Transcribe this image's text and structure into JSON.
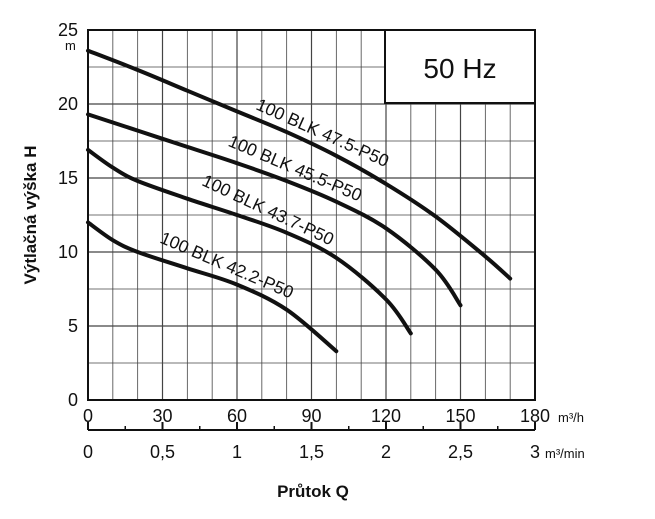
{
  "chart_data": {
    "type": "line",
    "ylabel": "Výtlačná výška H",
    "y_unit": "m",
    "xlabel": "Průtok Q",
    "x_unit": "m³/h",
    "x2_unit": "m³/min",
    "ylim": [
      0,
      25
    ],
    "xlim": [
      0,
      180
    ],
    "x2lim": [
      0,
      3
    ],
    "y_ticks": [
      "0",
      "5",
      "10",
      "15",
      "20",
      "25"
    ],
    "x_ticks": [
      "0",
      "30",
      "60",
      "90",
      "120",
      "150",
      "180"
    ],
    "x2_ticks": [
      "0",
      "0,5",
      "1",
      "1,5",
      "2",
      "2,5",
      "3"
    ],
    "grid": true,
    "frequency_label": "50 Hz",
    "series": [
      {
        "name": "100 BLK 47.5-P50",
        "x": [
          0,
          20,
          40,
          60,
          80,
          100,
          120,
          140,
          160,
          170
        ],
        "y": [
          23.6,
          22.3,
          20.9,
          19.5,
          18.1,
          16.5,
          14.6,
          12.4,
          9.7,
          8.2
        ]
      },
      {
        "name": "100 BLK 45.5-P50",
        "x": [
          0,
          20,
          40,
          60,
          80,
          100,
          120,
          140,
          150
        ],
        "y": [
          19.3,
          18.2,
          17.1,
          16.0,
          14.8,
          13.4,
          11.6,
          8.8,
          6.4
        ]
      },
      {
        "name": "100 BLK 43.7-P50",
        "x": [
          0,
          10,
          20,
          40,
          60,
          80,
          100,
          120,
          130
        ],
        "y": [
          16.9,
          15.7,
          14.8,
          13.6,
          12.5,
          11.3,
          9.6,
          6.8,
          4.5
        ]
      },
      {
        "name": "100 BLK 42.2-P50",
        "x": [
          0,
          10,
          20,
          40,
          60,
          80,
          100
        ],
        "y": [
          12.0,
          10.8,
          10.0,
          8.9,
          7.8,
          6.1,
          3.3
        ]
      }
    ]
  }
}
